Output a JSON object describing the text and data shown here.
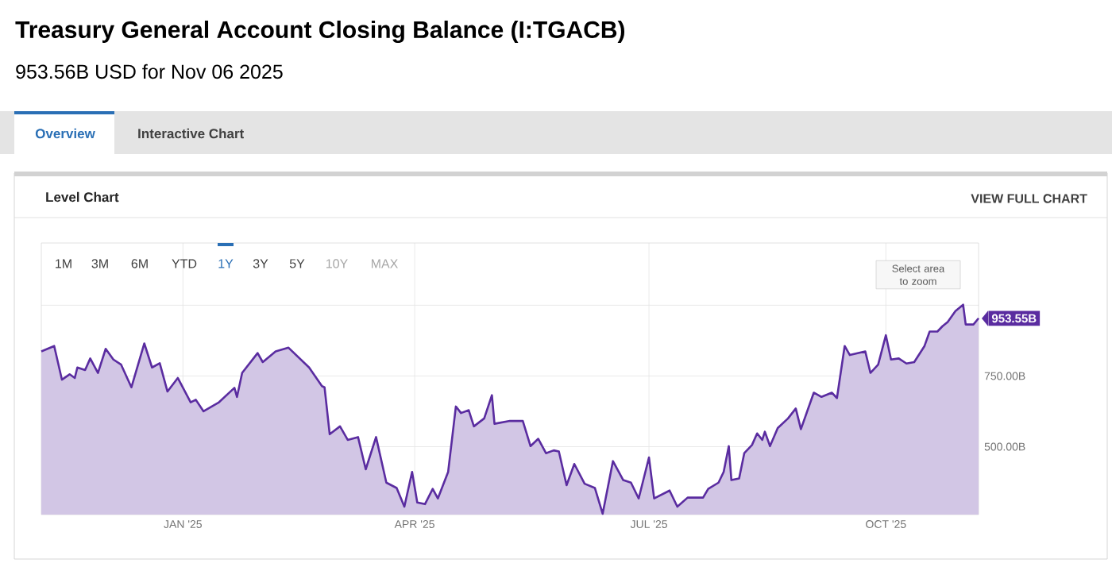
{
  "chart_data": {
    "type": "area",
    "title": "Treasury General Account Closing Balance (I:TGACB)",
    "subtitle": "953.56B USD for Nov 06 2025",
    "x": [
      "2024-11-07",
      "2024-11-12",
      "2024-11-15",
      "2024-11-18",
      "2024-11-20",
      "2024-11-21",
      "2024-11-24",
      "2024-11-26",
      "2024-11-29",
      "2024-12-02",
      "2024-12-05",
      "2024-12-08",
      "2024-12-12",
      "2024-12-17",
      "2024-12-20",
      "2024-12-23",
      "2024-12-26",
      "2024-12-30",
      "2025-01-04",
      "2025-01-06",
      "2025-01-09",
      "2025-01-15",
      "2025-01-21",
      "2025-01-22",
      "2025-01-24",
      "2025-01-30",
      "2025-02-01",
      "2025-02-06",
      "2025-02-11",
      "2025-02-19",
      "2025-02-24",
      "2025-02-25",
      "2025-02-27",
      "2025-03-03",
      "2025-03-06",
      "2025-03-10",
      "2025-03-13",
      "2025-03-17",
      "2025-03-21",
      "2025-03-25",
      "2025-03-28",
      "2025-03-31",
      "2025-04-02",
      "2025-04-05",
      "2025-04-08",
      "2025-04-10",
      "2025-04-14",
      "2025-04-17",
      "2025-04-19",
      "2025-04-22",
      "2025-04-24",
      "2025-04-28",
      "2025-05-01",
      "2025-05-02",
      "2025-05-08",
      "2025-05-13",
      "2025-05-16",
      "2025-05-19",
      "2025-05-22",
      "2025-05-25",
      "2025-05-27",
      "2025-05-30",
      "2025-06-02",
      "2025-06-06",
      "2025-06-10",
      "2025-06-13",
      "2025-06-17",
      "2025-06-21",
      "2025-06-24",
      "2025-06-27",
      "2025-07-01",
      "2025-07-03",
      "2025-07-09",
      "2025-07-12",
      "2025-07-16",
      "2025-07-22",
      "2025-07-24",
      "2025-07-28",
      "2025-07-30",
      "2025-08-01",
      "2025-08-02",
      "2025-08-05",
      "2025-08-07",
      "2025-08-10",
      "2025-08-12",
      "2025-08-14",
      "2025-08-15",
      "2025-08-17",
      "2025-08-20",
      "2025-08-24",
      "2025-08-27",
      "2025-08-29",
      "2025-09-03",
      "2025-09-06",
      "2025-09-10",
      "2025-09-12",
      "2025-09-15",
      "2025-09-17",
      "2025-09-23",
      "2025-09-25",
      "2025-09-28",
      "2025-10-01",
      "2025-10-03",
      "2025-10-06",
      "2025-10-09",
      "2025-10-12",
      "2025-10-16",
      "2025-10-18",
      "2025-10-21",
      "2025-10-23",
      "2025-10-25",
      "2025-10-28",
      "2025-10-31",
      "2025-11-01",
      "2025-11-04",
      "2025-11-06"
    ],
    "series": [
      {
        "color": "#5a2ca0",
        "values": [
          837,
          856,
          737,
          756,
          743,
          780,
          771,
          812,
          761,
          846,
          808,
          790,
          710,
          865,
          780,
          795,
          695,
          743,
          657,
          666,
          625,
          657,
          708,
          676,
          761,
          831,
          799,
          837,
          850,
          780,
          714,
          710,
          544,
          572,
          524,
          534,
          420,
          534,
          373,
          354,
          288,
          411,
          303,
          297,
          351,
          317,
          411,
          642,
          619,
          629,
          572,
          600,
          682,
          581,
          591,
          591,
          502,
          528,
          477,
          487,
          483,
          364,
          439,
          369,
          354,
          263,
          449,
          382,
          373,
          317,
          462,
          317,
          345,
          288,
          320,
          320,
          351,
          373,
          411,
          502,
          382,
          388,
          477,
          506,
          547,
          524,
          553,
          502,
          566,
          600,
          635,
          562,
          691,
          676,
          691,
          672,
          856,
          824,
          837,
          761,
          790,
          894,
          808,
          812,
          794,
          799,
          856,
          907,
          907,
          926,
          941,
          979,
          1002,
          932,
          932,
          954
        ]
      }
    ],
    "xlim": [
      "2024-11-07",
      "2025-11-06"
    ],
    "xticks": [
      {
        "value": "2025-01-01",
        "label": "JAN '25"
      },
      {
        "value": "2025-04-01",
        "label": "APR '25"
      },
      {
        "value": "2025-07-01",
        "label": "JUL '25"
      },
      {
        "value": "2025-10-01",
        "label": "OCT '25"
      }
    ],
    "ylim": [
      260,
      1220
    ],
    "yticks": [
      {
        "value": 500,
        "label": "500.00B"
      },
      {
        "value": 750,
        "label": "750.00B"
      },
      {
        "value": 1000,
        "label": null
      }
    ],
    "grid": true,
    "annotations": [
      "Overview",
      "Interactive Chart",
      "Level Chart",
      "VIEW FULL CHART",
      "1M",
      "3M",
      "6M",
      "YTD",
      "1Y",
      "3Y",
      "5Y",
      "10Y",
      "MAX",
      "Select area to zoom",
      {
        "text": "953.55B",
        "x": "2025-11-06",
        "y": 953.56
      }
    ]
  }
}
